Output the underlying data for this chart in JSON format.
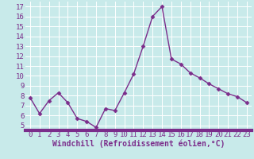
{
  "x": [
    0,
    1,
    2,
    3,
    4,
    5,
    6,
    7,
    8,
    9,
    10,
    11,
    12,
    13,
    14,
    15,
    16,
    17,
    18,
    19,
    20,
    21,
    22,
    23
  ],
  "y": [
    7.8,
    6.2,
    7.5,
    8.3,
    7.3,
    5.7,
    5.4,
    4.8,
    6.7,
    6.5,
    8.3,
    10.2,
    13.0,
    16.0,
    17.0,
    11.7,
    11.2,
    10.3,
    9.8,
    9.2,
    8.7,
    8.2,
    7.9,
    7.3
  ],
  "line_color": "#7B2D8B",
  "marker": "D",
  "marker_size": 2.5,
  "line_width": 1.0,
  "xlabel": "Windchill (Refroidissement éolien,°C)",
  "xlabel_fontsize": 7,
  "xticks": [
    0,
    1,
    2,
    3,
    4,
    5,
    6,
    7,
    8,
    9,
    10,
    11,
    12,
    13,
    14,
    15,
    16,
    17,
    18,
    19,
    20,
    21,
    22,
    23
  ],
  "yticks": [
    5,
    6,
    7,
    8,
    9,
    10,
    11,
    12,
    13,
    14,
    15,
    16,
    17
  ],
  "ylim": [
    4.5,
    17.5
  ],
  "xlim": [
    -0.5,
    23.5
  ],
  "background_color": "#c8eaea",
  "grid_color": "#ffffff",
  "tick_label_color": "#7B2D8B",
  "tick_label_fontsize": 6.5,
  "xlabel_color": "#7B2D8B",
  "axis_bar_color": "#7B2D8B",
  "axis_bar_height": 3
}
